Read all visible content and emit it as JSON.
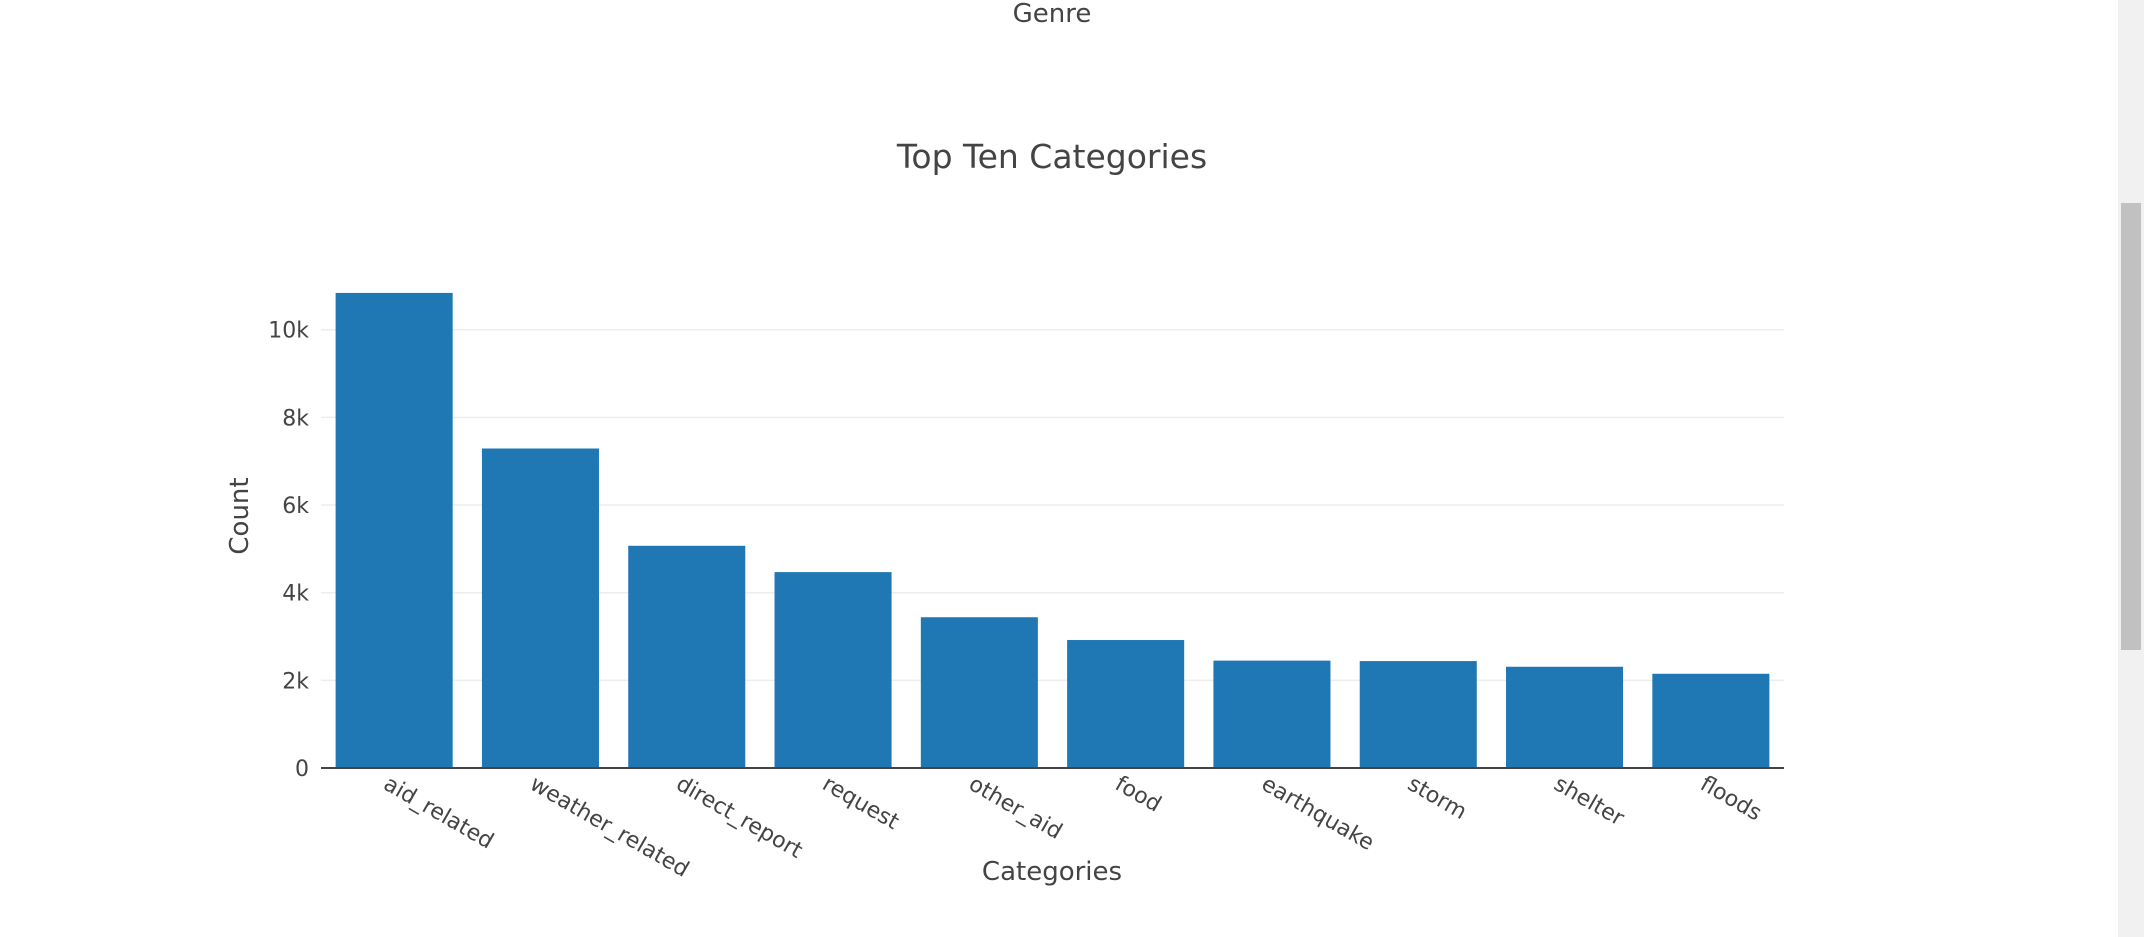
{
  "previous_chart": {
    "xlabel": "Genre"
  },
  "chart_data": {
    "type": "bar",
    "title": "Top Ten Categories",
    "xlabel": "Categories",
    "ylabel": "Count",
    "categories": [
      "aid_related",
      "weather_related",
      "direct_report",
      "request",
      "other_aid",
      "food",
      "earthquake",
      "storm",
      "shelter",
      "floods"
    ],
    "values": [
      10840,
      7290,
      5070,
      4470,
      3440,
      2920,
      2450,
      2440,
      2310,
      2150
    ],
    "ylim": [
      0,
      11500
    ],
    "yticks": [
      0,
      2000,
      4000,
      6000,
      8000,
      10000
    ],
    "ytick_labels": [
      "0",
      "2k",
      "4k",
      "6k",
      "8k",
      "10k"
    ],
    "grid": true,
    "bar_color": "#1f77b4",
    "grid_color": "#eeeeee"
  },
  "scrollbar": {
    "track_color": "#f1f1f1",
    "thumb_color": "#c1c1c1"
  }
}
